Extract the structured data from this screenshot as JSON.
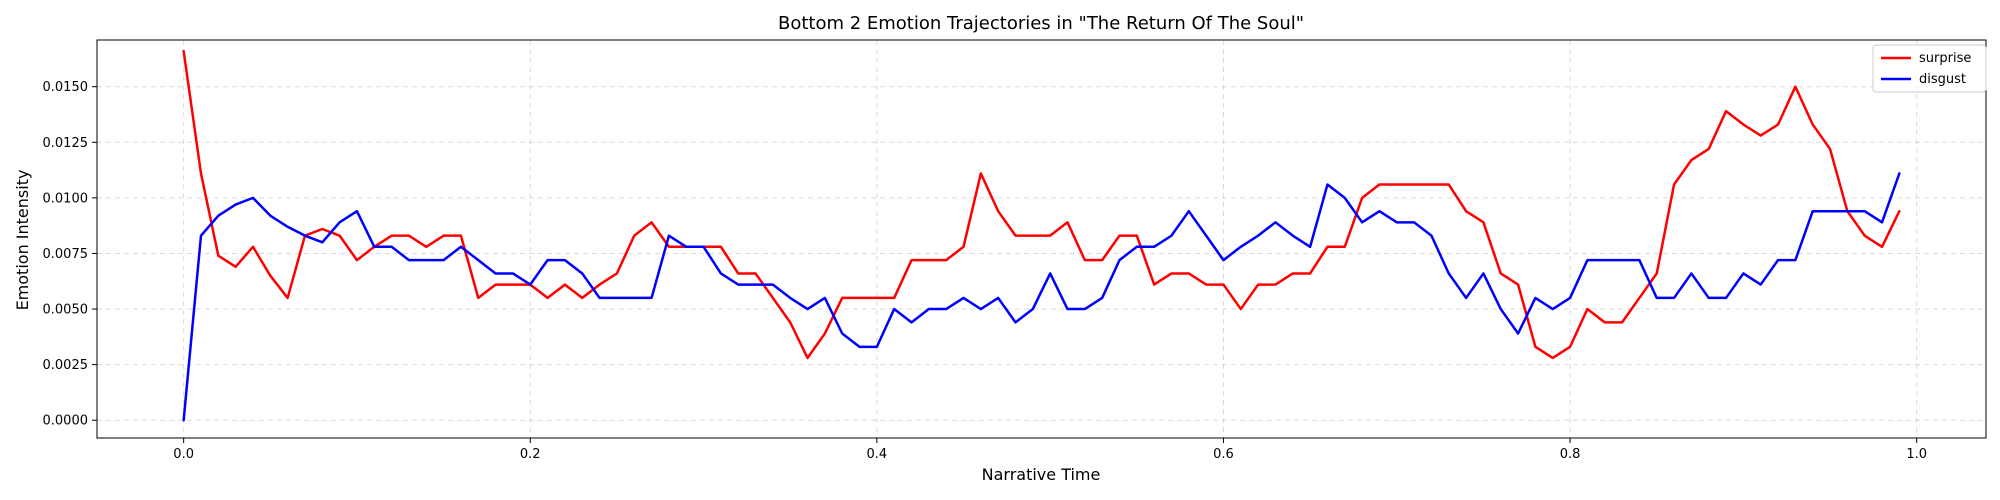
{
  "chart_data": {
    "type": "line",
    "title": "Bottom 2 Emotion Trajectories in \"The Return Of The Soul\"",
    "xlabel": "Narrative Time",
    "ylabel": "Emotion Intensity",
    "xlim": [
      -0.05,
      1.04
    ],
    "ylim": [
      -0.0008,
      0.0171
    ],
    "xticks": [
      0.0,
      0.2,
      0.4,
      0.6,
      0.8,
      1.0
    ],
    "xtick_labels": [
      "0.0",
      "0.2",
      "0.4",
      "0.6",
      "0.8",
      "1.0"
    ],
    "yticks": [
      0.0,
      0.0025,
      0.005,
      0.0075,
      0.01,
      0.0125,
      0.015
    ],
    "ytick_labels": [
      "0.0000",
      "0.0025",
      "0.0050",
      "0.0075",
      "0.0100",
      "0.0125",
      "0.0150"
    ],
    "grid": true,
    "legend_position": "top-right",
    "x": [
      0.0,
      0.01,
      0.02,
      0.03,
      0.04,
      0.05,
      0.06,
      0.07,
      0.08,
      0.09,
      0.1,
      0.11,
      0.12,
      0.13,
      0.14,
      0.15,
      0.16,
      0.17,
      0.18,
      0.19,
      0.2,
      0.21,
      0.22,
      0.23,
      0.24,
      0.25,
      0.26,
      0.27,
      0.28,
      0.29,
      0.3,
      0.31,
      0.32,
      0.33,
      0.34,
      0.35,
      0.36,
      0.37,
      0.38,
      0.39,
      0.4,
      0.41,
      0.42,
      0.43,
      0.44,
      0.45,
      0.46,
      0.47,
      0.48,
      0.49,
      0.5,
      0.51,
      0.52,
      0.53,
      0.54,
      0.55,
      0.56,
      0.57,
      0.58,
      0.59,
      0.6,
      0.61,
      0.62,
      0.63,
      0.64,
      0.65,
      0.66,
      0.67,
      0.68,
      0.69,
      0.7,
      0.71,
      0.72,
      0.73,
      0.74,
      0.75,
      0.76,
      0.77,
      0.78,
      0.79,
      0.8,
      0.81,
      0.82,
      0.83,
      0.84,
      0.85,
      0.86,
      0.87,
      0.88,
      0.89,
      0.9,
      0.91,
      0.92,
      0.93,
      0.94,
      0.95,
      0.96,
      0.97,
      0.98,
      0.99
    ],
    "series": [
      {
        "name": "surprise",
        "color": "#ff0000",
        "values": [
          0.0166,
          0.0111,
          0.0074,
          0.0069,
          0.0078,
          0.0065,
          0.0055,
          0.0083,
          0.0086,
          0.0083,
          0.0072,
          0.0078,
          0.0083,
          0.0083,
          0.0078,
          0.0083,
          0.0083,
          0.0055,
          0.0061,
          0.0061,
          0.0061,
          0.0055,
          0.0061,
          0.0055,
          0.0061,
          0.0066,
          0.0083,
          0.0089,
          0.0078,
          0.0078,
          0.0078,
          0.0078,
          0.0066,
          0.0066,
          0.0055,
          0.0044,
          0.0028,
          0.0039,
          0.0055,
          0.0055,
          0.0055,
          0.0055,
          0.0072,
          0.0072,
          0.0072,
          0.0078,
          0.0111,
          0.0094,
          0.0083,
          0.0083,
          0.0083,
          0.0089,
          0.0072,
          0.0072,
          0.0083,
          0.0083,
          0.0061,
          0.0066,
          0.0066,
          0.0061,
          0.0061,
          0.005,
          0.0061,
          0.0061,
          0.0066,
          0.0066,
          0.0078,
          0.0078,
          0.01,
          0.0106,
          0.0106,
          0.0106,
          0.0106,
          0.0106,
          0.0094,
          0.0089,
          0.0066,
          0.0061,
          0.0033,
          0.0028,
          0.0033,
          0.005,
          0.0044,
          0.0044,
          0.0055,
          0.0066,
          0.0106,
          0.0117,
          0.0122,
          0.0139,
          0.0133,
          0.0128,
          0.0133,
          0.015,
          0.0133,
          0.0122,
          0.0094,
          0.0083,
          0.0078,
          0.0094
        ]
      },
      {
        "name": "disgust",
        "color": "#0000ff",
        "values": [
          0.0,
          0.0083,
          0.0092,
          0.0097,
          0.01,
          0.0092,
          0.0087,
          0.0083,
          0.008,
          0.0089,
          0.0094,
          0.0078,
          0.0078,
          0.0072,
          0.0072,
          0.0072,
          0.0078,
          0.0072,
          0.0066,
          0.0066,
          0.0061,
          0.0072,
          0.0072,
          0.0066,
          0.0055,
          0.0055,
          0.0055,
          0.0055,
          0.0083,
          0.0078,
          0.0078,
          0.0066,
          0.0061,
          0.0061,
          0.0061,
          0.0055,
          0.005,
          0.0055,
          0.0039,
          0.0033,
          0.0033,
          0.005,
          0.0044,
          0.005,
          0.005,
          0.0055,
          0.005,
          0.0055,
          0.0044,
          0.005,
          0.0066,
          0.005,
          0.005,
          0.0055,
          0.0072,
          0.0078,
          0.0078,
          0.0083,
          0.0094,
          0.0083,
          0.0072,
          0.0078,
          0.0083,
          0.0089,
          0.0083,
          0.0078,
          0.0106,
          0.01,
          0.0089,
          0.0094,
          0.0089,
          0.0089,
          0.0083,
          0.0066,
          0.0055,
          0.0066,
          0.005,
          0.0039,
          0.0055,
          0.005,
          0.0055,
          0.0072,
          0.0072,
          0.0072,
          0.0072,
          0.0055,
          0.0055,
          0.0066,
          0.0055,
          0.0055,
          0.0066,
          0.0061,
          0.0072,
          0.0072,
          0.0094,
          0.0094,
          0.0094,
          0.0094,
          0.0089,
          0.0111
        ]
      }
    ]
  }
}
